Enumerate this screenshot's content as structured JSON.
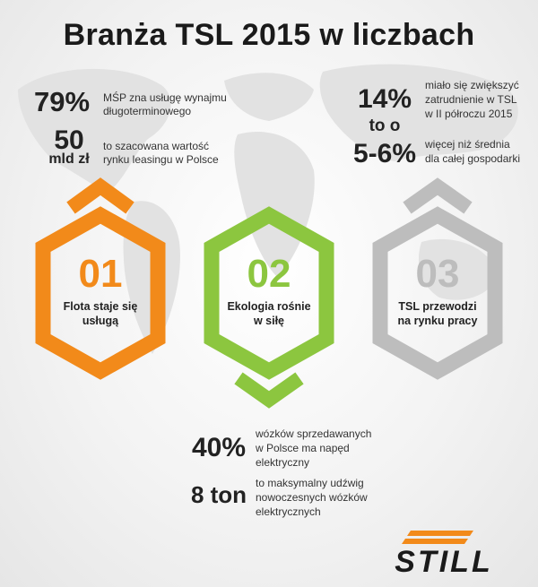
{
  "title": "Branża TSL 2015 w liczbach",
  "colors": {
    "orange": "#f28a1a",
    "green": "#8cc63f",
    "gray": "#bdbdbd",
    "dark": "#1a1a1a"
  },
  "left_stats": [
    {
      "value": "79%",
      "text_lines": [
        "MŚP zna usługę wynajmu",
        "długoterminowego"
      ]
    },
    {
      "value_line1": "50",
      "value_line2": "mld zł",
      "text_lines": [
        "to szacowana wartość",
        "rynku leasingu w Polsce"
      ]
    }
  ],
  "right_stats": {
    "value_top": "14%",
    "connector": "to o",
    "value_bottom": "5-6%",
    "text_top_lines": [
      "miało się zwiększyć",
      "zatrudnienie w TSL",
      "w II półroczu 2015"
    ],
    "text_bottom_lines": [
      "więcej niż średnia",
      "dla całej gospodarki"
    ]
  },
  "hexagons": [
    {
      "number": "01",
      "label_lines": [
        "Flota staje się",
        "usługą"
      ],
      "color": "#f28a1a"
    },
    {
      "number": "02",
      "label_lines": [
        "Ekologia rośnie",
        "w siłę"
      ],
      "color": "#8cc63f"
    },
    {
      "number": "03",
      "label_lines": [
        "TSL przewodzi",
        "na rynku pracy"
      ],
      "color": "#bdbdbd"
    }
  ],
  "bottom_stats": [
    {
      "value": "40%",
      "text_lines": [
        "wózków sprzedawanych",
        "w Polsce ma napęd",
        "elektryczny"
      ]
    },
    {
      "value": "8 ton",
      "text_lines": [
        "to maksymalny udźwig",
        "nowoczesnych wózków",
        "elektrycznych"
      ]
    }
  ],
  "logo": {
    "text": "STILL",
    "icon": "still-logo-bars"
  }
}
